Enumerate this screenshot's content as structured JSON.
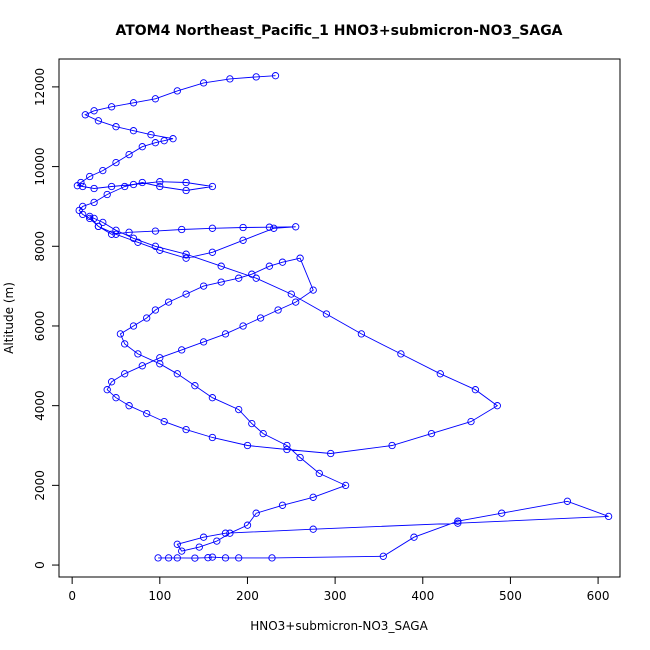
{
  "chart_data": {
    "type": "line",
    "title": "ATOM4 Northeast_Pacific_1 HNO3+submicron-NO3_SAGA",
    "xlabel": "HNO3+submicron-NO3_SAGA",
    "ylabel": "Altitude (m)",
    "xlim": [
      -15,
      625
    ],
    "ylim": [
      -300,
      12700
    ],
    "xticks": [
      0,
      100,
      200,
      300,
      400,
      500,
      600
    ],
    "yticks": [
      0,
      2000,
      4000,
      6000,
      8000,
      10000,
      12000
    ],
    "grid": false,
    "legend": "none",
    "series_color": "#0000ff",
    "marker": "open-circle",
    "x": [
      98,
      110,
      120,
      140,
      155,
      160,
      175,
      190,
      228,
      355,
      390,
      440,
      490,
      565,
      612,
      440,
      275,
      175,
      150,
      120,
      125,
      145,
      165,
      180,
      200,
      210,
      240,
      275,
      312,
      282,
      260,
      245,
      218,
      205,
      190,
      160,
      140,
      120,
      100,
      75,
      60,
      55,
      70,
      85,
      95,
      110,
      130,
      150,
      170,
      190,
      205,
      225,
      240,
      260,
      275,
      255,
      235,
      215,
      195,
      175,
      150,
      125,
      100,
      80,
      60,
      45,
      40,
      50,
      65,
      85,
      105,
      130,
      160,
      200,
      245,
      295,
      365,
      410,
      455,
      485,
      460,
      420,
      375,
      330,
      290,
      250,
      210,
      170,
      130,
      95,
      70,
      50,
      35,
      25,
      20,
      30,
      50,
      75,
      100,
      130,
      160,
      195,
      230,
      255,
      225,
      195,
      160,
      125,
      95,
      65,
      45,
      30,
      20,
      12,
      8,
      12,
      25,
      40,
      60,
      80,
      100,
      130,
      160,
      130,
      100,
      70,
      45,
      25,
      12,
      6,
      10,
      20,
      35,
      50,
      65,
      80,
      95,
      105,
      115,
      90,
      70,
      50,
      30,
      15,
      25,
      45,
      70,
      95,
      120,
      150,
      180,
      210,
      232
    ],
    "y": [
      180,
      180,
      180,
      175,
      185,
      200,
      180,
      180,
      180,
      220,
      700,
      1100,
      1300,
      1600,
      1220,
      1050,
      900,
      800,
      700,
      520,
      350,
      450,
      600,
      800,
      1000,
      1300,
      1500,
      1700,
      2000,
      2300,
      2700,
      3000,
      3300,
      3550,
      3900,
      4200,
      4500,
      4800,
      5050,
      5300,
      5550,
      5800,
      6000,
      6200,
      6400,
      6600,
      6800,
      7000,
      7100,
      7200,
      7300,
      7500,
      7600,
      7700,
      6900,
      6600,
      6400,
      6200,
      6000,
      5800,
      5600,
      5400,
      5200,
      5000,
      4800,
      4600,
      4400,
      4200,
      4000,
      3800,
      3600,
      3400,
      3200,
      3000,
      2900,
      2800,
      3000,
      3300,
      3600,
      4000,
      4400,
      4800,
      5300,
      5800,
      6300,
      6800,
      7200,
      7500,
      7800,
      8000,
      8200,
      8400,
      8600,
      8700,
      8750,
      8500,
      8300,
      8100,
      7900,
      7700,
      7850,
      8150,
      8450,
      8490,
      8480,
      8470,
      8450,
      8420,
      8380,
      8350,
      8300,
      8500,
      8700,
      8800,
      8900,
      9000,
      9100,
      9300,
      9500,
      9600,
      9500,
      9400,
      9500,
      9600,
      9620,
      9550,
      9500,
      9450,
      9500,
      9520,
      9600,
      9750,
      9900,
      10100,
      10300,
      10500,
      10600,
      10650,
      10700,
      10800,
      10900,
      11000,
      11150,
      11300,
      11400,
      11500,
      11600,
      11700,
      11900,
      12100,
      12200,
      12250,
      12280
    ]
  }
}
